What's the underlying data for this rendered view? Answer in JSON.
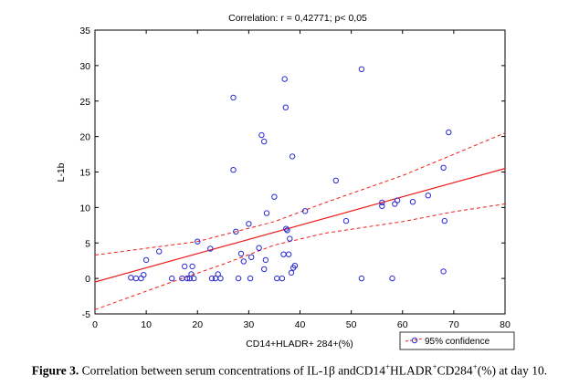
{
  "chart_data": {
    "type": "scatter",
    "title": "Correlation: r = 0,42771; p< 0,05",
    "xlabel": "CD14+HLADR+ 284+(%)",
    "ylabel": "L-1b",
    "xlim": [
      0,
      80
    ],
    "ylim": [
      -5,
      35
    ],
    "x_ticks": [
      "0",
      "10",
      "20",
      "30",
      "40",
      "50",
      "60",
      "70",
      "80"
    ],
    "y_ticks": [
      "-5",
      "0",
      "5",
      "10",
      "15",
      "20",
      "25",
      "30",
      "35"
    ],
    "grid": false,
    "legend": {
      "placement": "bottom-right",
      "label": "95% confidence"
    },
    "regression": {
      "intercept": -0.5,
      "slope": 0.2
    },
    "confidence_upper": [
      [
        0,
        3.3
      ],
      [
        20,
        5.2
      ],
      [
        35,
        8.0
      ],
      [
        45,
        10.7
      ],
      [
        60,
        14.5
      ],
      [
        70,
        17.5
      ],
      [
        80,
        20.5
      ]
    ],
    "confidence_lower": [
      [
        0,
        -4.4
      ],
      [
        15,
        -0.5
      ],
      [
        25,
        2.0
      ],
      [
        35,
        4.7
      ],
      [
        45,
        6.4
      ],
      [
        60,
        8.0
      ],
      [
        70,
        9.4
      ],
      [
        80,
        10.5
      ]
    ],
    "points": [
      [
        7,
        0.1
      ],
      [
        8,
        0
      ],
      [
        9,
        0
      ],
      [
        9.5,
        0.5
      ],
      [
        10,
        2.6
      ],
      [
        12.5,
        3.8
      ],
      [
        15,
        0
      ],
      [
        17,
        0
      ],
      [
        17.5,
        1.7
      ],
      [
        18,
        0
      ],
      [
        18.5,
        0
      ],
      [
        18.8,
        0.6
      ],
      [
        19,
        1.7
      ],
      [
        19.3,
        0
      ],
      [
        20,
        5.2
      ],
      [
        22.5,
        4.2
      ],
      [
        22.8,
        0
      ],
      [
        23.5,
        0
      ],
      [
        24,
        0.6
      ],
      [
        24.5,
        0
      ],
      [
        27,
        25.5
      ],
      [
        27,
        15.3
      ],
      [
        27.5,
        6.6
      ],
      [
        28,
        0
      ],
      [
        28.5,
        3.5
      ],
      [
        29,
        2.4
      ],
      [
        30,
        7.7
      ],
      [
        30.3,
        0
      ],
      [
        30.5,
        3.0
      ],
      [
        32,
        4.3
      ],
      [
        32.5,
        20.2
      ],
      [
        33,
        19.3
      ],
      [
        33,
        1.3
      ],
      [
        33.3,
        2.6
      ],
      [
        33.5,
        9.2
      ],
      [
        35,
        11.5
      ],
      [
        35.5,
        0
      ],
      [
        36.5,
        0
      ],
      [
        36.8,
        3.4
      ],
      [
        37,
        28.1
      ],
      [
        37.2,
        24.1
      ],
      [
        37.3,
        7.0
      ],
      [
        37.5,
        6.8
      ],
      [
        37.8,
        3.4
      ],
      [
        38,
        5.6
      ],
      [
        38.5,
        17.2
      ],
      [
        38.3,
        0.8
      ],
      [
        38.7,
        1.5
      ],
      [
        39,
        1.8
      ],
      [
        41,
        9.5
      ],
      [
        47,
        13.8
      ],
      [
        49,
        8.1
      ],
      [
        52,
        29.5
      ],
      [
        52,
        0
      ],
      [
        56,
        10.7
      ],
      [
        56,
        10.2
      ],
      [
        58,
        0
      ],
      [
        58.5,
        10.5
      ],
      [
        59,
        11.0
      ],
      [
        62,
        10.8
      ],
      [
        65,
        11.7
      ],
      [
        68,
        1.0
      ],
      [
        68,
        15.6
      ],
      [
        68.2,
        8.1
      ],
      [
        69,
        20.6
      ]
    ]
  },
  "caption": {
    "figure_label": "Figure 3.",
    "text_before_sup1": " Correlation between serum concentrations of IL-1β andCD14",
    "sup1": "+",
    "text_hladr": "HLADR",
    "sup2": "+",
    "text_cd284": "CD284",
    "sup3": "+",
    "text_after": "(%) at day 10."
  },
  "colors": {
    "point": "#2a2ad4",
    "regression": "#ee1c1c",
    "confidence": "#ee1c1c",
    "axis": "#000000"
  }
}
